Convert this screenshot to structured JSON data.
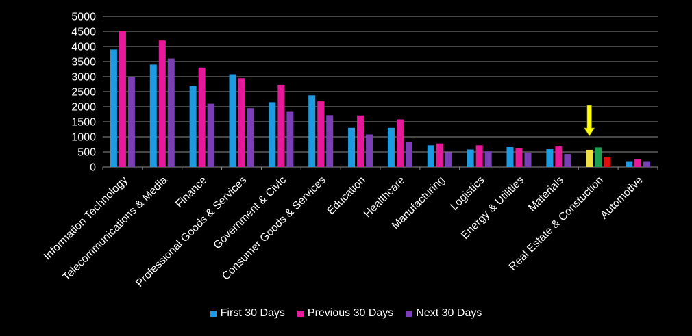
{
  "chart_data": {
    "type": "bar",
    "categories": [
      "Information Technology",
      "Telecommunications & Media",
      "Finance",
      "Professional Goods & Services",
      "Government & Civic",
      "Consumer Goods &  Services",
      "Education",
      "Healthcare",
      "Manufacturing",
      "Logistics",
      "Energy & Utilities",
      "Materials",
      "Real Estate & Constuction",
      "Automotive"
    ],
    "series": [
      {
        "name": "First 30 Days",
        "color": "#1e9be0",
        "values": [
          3900,
          3400,
          2700,
          3080,
          2150,
          2380,
          1300,
          1300,
          720,
          580,
          660,
          590,
          570,
          170
        ]
      },
      {
        "name": "Previous 30 Days",
        "color": "#e6199b",
        "values": [
          4500,
          4200,
          3300,
          2950,
          2730,
          2180,
          1710,
          1580,
          780,
          720,
          620,
          680,
          650,
          270
        ]
      },
      {
        "name": "Next 30 Days",
        "color": "#7b3fb5",
        "values": [
          3000,
          3600,
          2100,
          1950,
          1850,
          1720,
          1080,
          840,
          490,
          520,
          480,
          430,
          340,
          170
        ]
      }
    ],
    "highlight": {
      "category": "Real Estate & Constuction",
      "colors": [
        "#f0e040",
        "#1aa050",
        "#e01010"
      ],
      "arrow_color": "#ffff00"
    },
    "ylim": [
      0,
      5000
    ],
    "yticks": [
      "0",
      "500",
      "1000",
      "1500",
      "2000",
      "2500",
      "3000",
      "3500",
      "4000",
      "4500",
      "5000"
    ],
    "grid": true,
    "legend": "bottom",
    "title": "",
    "xlabel": "",
    "ylabel": ""
  }
}
